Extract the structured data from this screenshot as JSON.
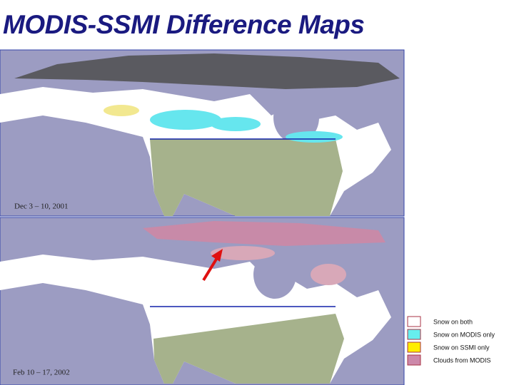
{
  "header": {
    "title": "MODIS-SSMI Difference Maps"
  },
  "maps": [
    {
      "label": "Dec 3 – 10, 2001"
    },
    {
      "label": "Feb 10 – 17, 2002"
    }
  ],
  "legend": [
    {
      "label": "Snow on both",
      "color": "#ffffff"
    },
    {
      "label": "Snow on MODIS only",
      "color": "#66eeee"
    },
    {
      "label": "Snow on SSMI only",
      "color": "#ffee00"
    },
    {
      "label": "Clouds from MODIS",
      "color": "#cc88aa"
    }
  ]
}
